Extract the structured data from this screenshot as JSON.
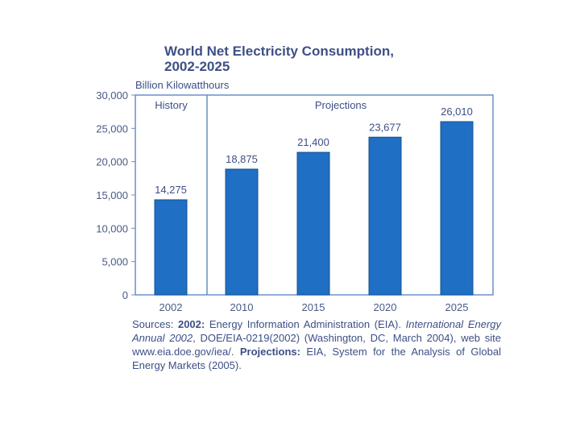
{
  "chart_data": {
    "type": "bar",
    "title_line1": "World Net Electricity Consumption,",
    "title_line2": "2002-2025",
    "ylabel": "Billion Kilowatthours",
    "xlabel": "",
    "ylim": [
      0,
      30000
    ],
    "yticks": [
      0,
      5000,
      10000,
      15000,
      20000,
      25000,
      30000
    ],
    "ytick_labels": [
      "0",
      "5,000",
      "10,000",
      "15,000",
      "20,000",
      "25,000",
      "30,000"
    ],
    "categories": [
      "2002",
      "2010",
      "2015",
      "2020",
      "2025"
    ],
    "values": [
      14275,
      18875,
      21400,
      23677,
      26010
    ],
    "value_labels": [
      "14,275",
      "18,875",
      "21,400",
      "23,677",
      "26,010"
    ],
    "regions": [
      {
        "label": "History",
        "categories": [
          "2002"
        ]
      },
      {
        "label": "Projections",
        "categories": [
          "2010",
          "2015",
          "2020",
          "2025"
        ]
      }
    ],
    "grid": false,
    "colors": {
      "bar": "#1f6fc4",
      "bar_edge": "#14508f",
      "frame": "#6a8fc8",
      "text": "#3d4f86"
    }
  },
  "sources": {
    "prefix": "Sources: ",
    "label_2002": "2002:",
    "text_2002": " Energy Information Administration (EIA). ",
    "publication": "International Energy Annual 2002",
    "text_2002b": ", DOE/EIA-0219(2002) (Washington, DC, March 2004), web site www.eia.doe.gov/iea/. ",
    "label_projections": "Projections:",
    "text_projections": " EIA, System for the Analysis of Global Energy Markets (2005)."
  }
}
